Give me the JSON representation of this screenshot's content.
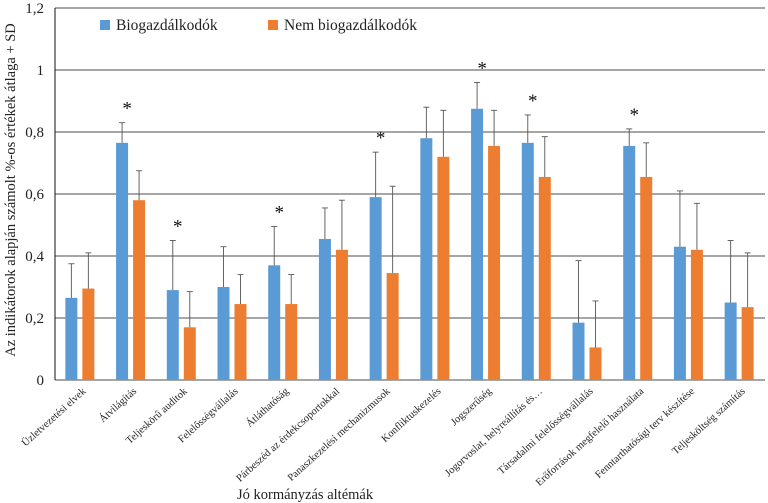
{
  "chart_data": {
    "type": "bar",
    "title": "",
    "xlabel": "Jó kormányzás  altémák",
    "ylabel": "Az indikátorok  alapján  számolt %-os értékek átlaga + SD",
    "ylim": [
      0,
      1.2
    ],
    "yticks": [
      "0",
      "0,2",
      "0,4",
      "0,6",
      "0,8",
      "1",
      "1,2"
    ],
    "grid": true,
    "legend_position": "top-left",
    "colors": {
      "Biogazdálkodók": "#5B9BD5",
      "Nem biogazdálkodók": "#ED7D31"
    },
    "categories": [
      "Üzletvezetési elvek",
      "Átvilágítás",
      "Teljeskörű auditok",
      "Felelősségvállalás",
      "Átláthatóság",
      "Párbeszéd az érdekcsoportokkal",
      "Panaszkezelési mechanizmusok",
      "Konfliktuskezelés",
      "Jogszerűség",
      "Jogorvoslat, helyreállítás és…",
      "Társadalmi felelősségvállalás",
      "Erőforrások megfelelő használata",
      "Fenntarthatósági terv készítése",
      "Teljesköltség számítás"
    ],
    "series": [
      {
        "name": "Biogazdálkodók",
        "values": [
          0.265,
          0.765,
          0.29,
          0.3,
          0.37,
          0.455,
          0.59,
          0.78,
          0.875,
          0.765,
          0.185,
          0.755,
          0.43,
          0.25
        ],
        "sd": [
          0.11,
          0.065,
          0.16,
          0.13,
          0.125,
          0.1,
          0.145,
          0.1,
          0.085,
          0.09,
          0.2,
          0.055,
          0.18,
          0.2
        ]
      },
      {
        "name": "Nem biogazdálkodók",
        "values": [
          0.295,
          0.58,
          0.17,
          0.245,
          0.245,
          0.42,
          0.345,
          0.72,
          0.755,
          0.655,
          0.105,
          0.655,
          0.42,
          0.235
        ],
        "sd": [
          0.115,
          0.095,
          0.115,
          0.095,
          0.095,
          0.16,
          0.28,
          0.15,
          0.115,
          0.13,
          0.15,
          0.11,
          0.15,
          0.175
        ]
      }
    ],
    "annotations": [
      {
        "category_index": 1,
        "text": "*"
      },
      {
        "category_index": 2,
        "text": "*"
      },
      {
        "category_index": 4,
        "text": "*"
      },
      {
        "category_index": 6,
        "text": "*"
      },
      {
        "category_index": 8,
        "text": "*"
      },
      {
        "category_index": 9,
        "text": "*"
      },
      {
        "category_index": 11,
        "text": "*"
      }
    ]
  }
}
